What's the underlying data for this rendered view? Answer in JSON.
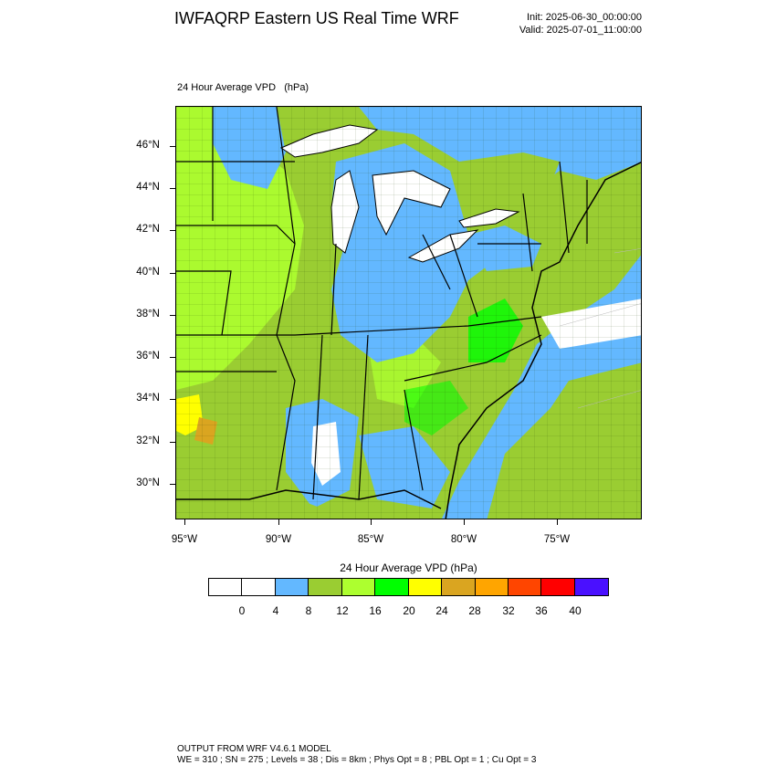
{
  "header": {
    "title": "IWFAQRP Eastern US Real Time WRF",
    "init": "Init: 2025-06-30_00:00:00",
    "valid": "Valid: 2025-07-01_11:00:00"
  },
  "map": {
    "subtitle": "24 Hour Average VPD   (hPa)",
    "lat_labels": [
      "46°N",
      "44°N",
      "42°N",
      "40°N",
      "38°N",
      "36°N",
      "34°N",
      "32°N",
      "30°N"
    ],
    "lon_labels": [
      "95°W",
      "90°W",
      "85°W",
      "80°W",
      "75°W"
    ],
    "colors": {
      "land_base": "#9acd32",
      "light_green": "#adff2f",
      "green": "#00ff00",
      "blue": "#63b8ff",
      "white": "#ffffff",
      "yellow": "#ffff00",
      "goldenrod": "#daa520"
    }
  },
  "colorbar": {
    "title": "24 Hour Average VPD  (hPa)",
    "colors": [
      "#ffffff",
      "#ffffff",
      "#63b8ff",
      "#9acd32",
      "#adff2f",
      "#00ff00",
      "#ffff00",
      "#daa520",
      "#ffa500",
      "#ff4500",
      "#ff0000",
      "#4a10ff"
    ],
    "labels": [
      "0",
      "4",
      "8",
      "12",
      "16",
      "20",
      "24",
      "28",
      "32",
      "36",
      "40"
    ]
  },
  "footer": {
    "line1": "OUTPUT FROM WRF V4.6.1 MODEL",
    "line2": "WE = 310 ; SN = 275 ; Levels = 38 ; Dis = 8km ; Phys Opt = 8 ; PBL Opt = 1 ; Cu Opt = 3"
  }
}
